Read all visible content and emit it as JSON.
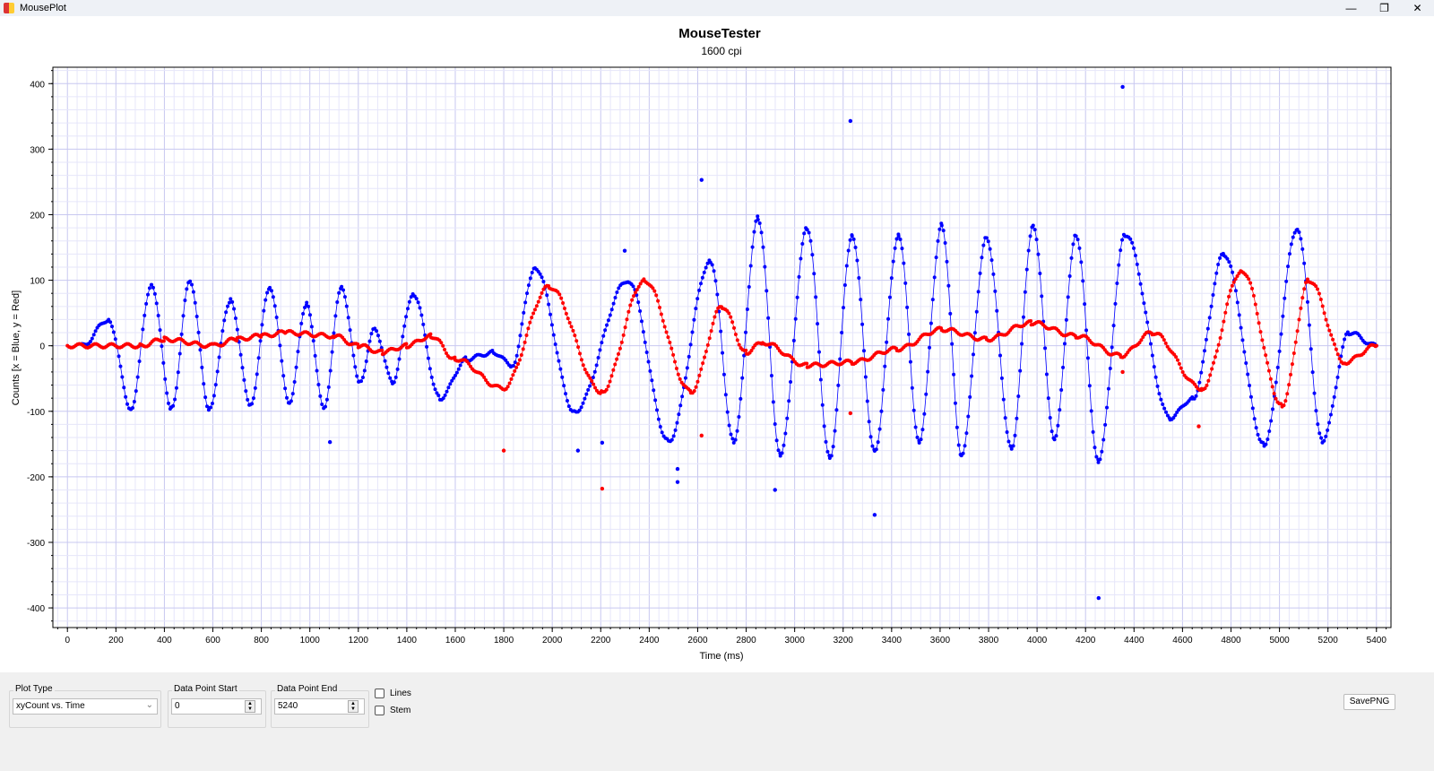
{
  "window": {
    "title": "MousePlot",
    "minimize": "—",
    "restore": "❐",
    "close": "✕"
  },
  "controls": {
    "plot_type_label": "Plot Type",
    "plot_type_value": "xyCount vs. Time",
    "start_label": "Data Point Start",
    "start_value": "0",
    "end_label": "Data Point End",
    "end_value": "5240",
    "lines_label": "Lines",
    "lines_checked": false,
    "stem_label": "Stem",
    "stem_checked": false,
    "save_label": "SavePNG"
  },
  "chart_data": {
    "type": "line",
    "title": "MouseTester",
    "subtitle": "1600 cpi",
    "xlabel": "Time (ms)",
    "ylabel": "Counts [x = Blue, y = Red]",
    "xlim": [
      -60,
      5460
    ],
    "ylim": [
      -430,
      425
    ],
    "xticks": [
      0,
      200,
      400,
      600,
      800,
      1000,
      1200,
      1400,
      1600,
      1800,
      2000,
      2200,
      2400,
      2600,
      2800,
      3000,
      3200,
      3400,
      3600,
      3800,
      4000,
      4200,
      4400,
      4600,
      4800,
      5000,
      5200,
      5400
    ],
    "yticks": [
      -400,
      -300,
      -200,
      -100,
      0,
      100,
      200,
      300,
      400
    ],
    "grid": true,
    "series": [
      {
        "name": "x",
        "color": "#0000ff",
        "extrema": [
          [
            60,
            0
          ],
          [
            170,
            40
          ],
          [
            262,
            -95
          ],
          [
            347,
            95
          ],
          [
            429,
            -95
          ],
          [
            506,
            100
          ],
          [
            584,
            -95
          ],
          [
            673,
            70
          ],
          [
            754,
            -90
          ],
          [
            835,
            90
          ],
          [
            916,
            -85
          ],
          [
            987,
            65
          ],
          [
            1057,
            -95
          ],
          [
            1131,
            90
          ],
          [
            1205,
            -55
          ],
          [
            1268,
            25
          ],
          [
            1341,
            -55
          ],
          [
            1426,
            80
          ],
          [
            1537,
            -80
          ],
          [
            1648,
            -20
          ],
          [
            1759,
            -10
          ],
          [
            1833,
            -30
          ],
          [
            1929,
            120
          ],
          [
            2092,
            -100
          ],
          [
            2313,
            100
          ],
          [
            2480,
            -145
          ],
          [
            2653,
            130
          ],
          [
            2749,
            -145
          ],
          [
            2849,
            195
          ],
          [
            2941,
            -165
          ],
          [
            3052,
            180
          ],
          [
            3145,
            -170
          ],
          [
            3237,
            170
          ],
          [
            3330,
            -160
          ],
          [
            3429,
            170
          ],
          [
            3514,
            -145
          ],
          [
            3607,
            185
          ],
          [
            3688,
            -165
          ],
          [
            3792,
            165
          ],
          [
            3895,
            -155
          ],
          [
            3984,
            185
          ],
          [
            4072,
            -140
          ],
          [
            4161,
            170
          ],
          [
            4253,
            -175
          ],
          [
            4364,
            170
          ],
          [
            4549,
            -110
          ],
          [
            4642,
            -80
          ],
          [
            4771,
            140
          ],
          [
            4937,
            -150
          ],
          [
            5074,
            180
          ],
          [
            5177,
            -145
          ],
          [
            5288,
            20
          ],
          [
            5400,
            0
          ]
        ],
        "outliers": [
          [
            1083,
            -147
          ],
          [
            2106,
            -160
          ],
          [
            2206,
            -148
          ],
          [
            2299,
            145
          ],
          [
            2517,
            -188
          ],
          [
            2517,
            -208
          ],
          [
            2616,
            253
          ],
          [
            2919,
            -220
          ],
          [
            3230,
            343
          ],
          [
            3330,
            -258
          ],
          [
            4254,
            -385
          ],
          [
            4353,
            395
          ]
        ]
      },
      {
        "name": "y",
        "color": "#ff0000",
        "extrema": [
          [
            0,
            0
          ],
          [
            300,
            0
          ],
          [
            400,
            10
          ],
          [
            600,
            0
          ],
          [
            700,
            10
          ],
          [
            800,
            15
          ],
          [
            900,
            20
          ],
          [
            1100,
            15
          ],
          [
            1200,
            0
          ],
          [
            1300,
            -10
          ],
          [
            1400,
            0
          ],
          [
            1500,
            15
          ],
          [
            1600,
            -20
          ],
          [
            1796,
            -65
          ],
          [
            1988,
            90
          ],
          [
            2203,
            -70
          ],
          [
            2380,
            100
          ],
          [
            2572,
            -70
          ],
          [
            2701,
            60
          ],
          [
            2801,
            -10
          ],
          [
            2868,
            5
          ],
          [
            3052,
            -30
          ],
          [
            3237,
            -25
          ],
          [
            3422,
            -5
          ],
          [
            3607,
            25
          ],
          [
            3792,
            10
          ],
          [
            3976,
            35
          ],
          [
            4161,
            15
          ],
          [
            4346,
            -15
          ],
          [
            4475,
            20
          ],
          [
            4679,
            -65
          ],
          [
            4845,
            115
          ],
          [
            5011,
            -90
          ],
          [
            5122,
            100
          ],
          [
            5270,
            -25
          ],
          [
            5400,
            0
          ]
        ],
        "outliers": [
          [
            1800,
            -160
          ],
          [
            2206,
            -218
          ],
          [
            2616,
            -137
          ],
          [
            3230,
            -103
          ],
          [
            4353,
            -40
          ],
          [
            4667,
            -123
          ]
        ]
      }
    ]
  }
}
